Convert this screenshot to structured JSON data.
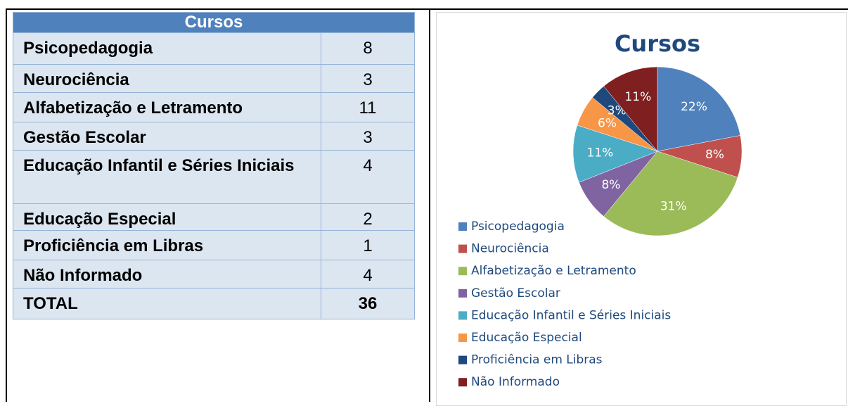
{
  "table": {
    "title": "Cursos",
    "rows": [
      [
        "Psicopedagogia",
        8
      ],
      [
        "Neurociência",
        3
      ],
      [
        "Alfabetização e Letramento",
        11
      ],
      [
        "Gestão Escolar",
        3
      ],
      [
        "Educação Infantil e Séries Iniciais",
        4
      ],
      [
        "Educação Especial",
        2
      ],
      [
        "Proficiência em Libras",
        1
      ],
      [
        "Não Informado",
        4
      ]
    ],
    "total": [
      "TOTAL",
      36
    ]
  },
  "chart_data": {
    "type": "pie",
    "title": "Cursos",
    "categories": [
      "Psicopedagogia",
      "Neurociência",
      "Alfabetização e Letramento",
      "Gestão Escolar",
      "Educação Infantil e Séries Iniciais",
      "Educação Especial",
      "Proficiência em Libras",
      "Não Informado"
    ],
    "values": [
      22,
      8,
      31,
      8,
      11,
      6,
      3,
      11
    ],
    "value_labels": [
      "22%",
      "8%",
      "31%",
      "8%",
      "11%",
      "6%",
      "3%",
      "11%"
    ],
    "colors": [
      "#4f81bd",
      "#c0504d",
      "#9bbb59",
      "#8064a2",
      "#4bacc6",
      "#f79646",
      "#1f497d",
      "#7f1f1f"
    ],
    "legend": "bottom-left"
  }
}
